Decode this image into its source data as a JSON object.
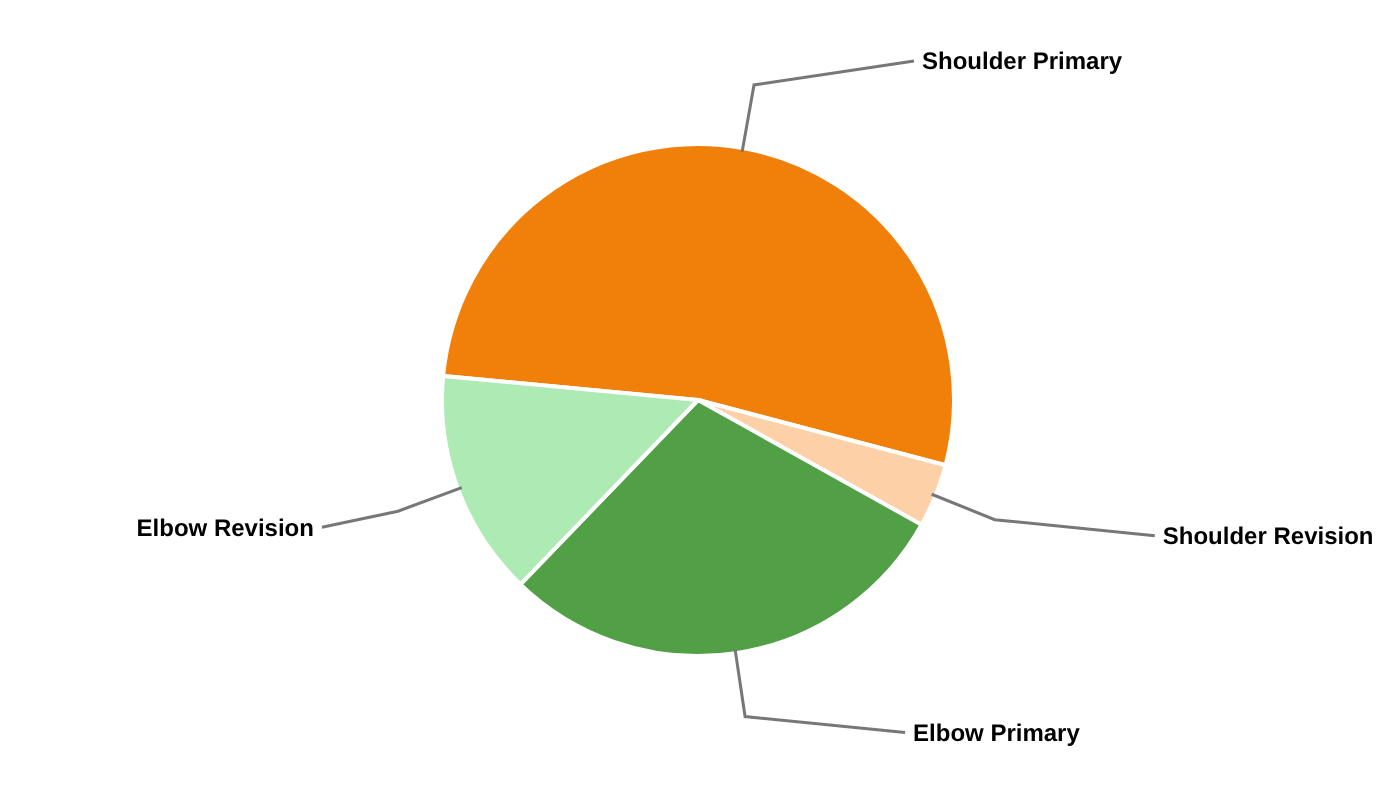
{
  "chart_data": {
    "type": "pie",
    "categories": [
      "Shoulder Primary",
      "Shoulder Revision",
      "Elbow Primary",
      "Elbow Revision"
    ],
    "values": [
      52.6,
      4,
      29.1,
      14.3
    ],
    "colors": [
      "#f0800a",
      "#fdd0a8",
      "#52a046",
      "#aeeab4"
    ]
  }
}
